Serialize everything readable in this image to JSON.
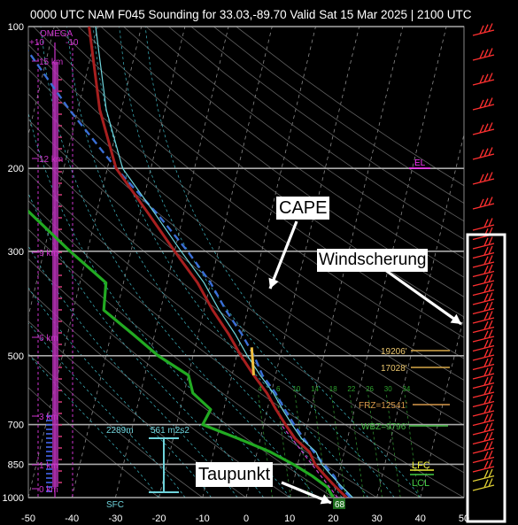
{
  "title": "0000 UTC NAM F045 Sounding for 33.03,-89.70 Valid  Sat 15 Mar 2025 | 2100 UTC",
  "annotations": {
    "cape": "CAPE",
    "taupunkt": "Taupunkt",
    "windscherung": "Windscherung"
  },
  "omega": {
    "label": "OMEGA",
    "left": "+10",
    "right": "-10"
  },
  "heights": [
    "15 km",
    "12 km",
    "9 km",
    "6 km",
    "3 km",
    "1 km",
    "0 km"
  ],
  "levels": {
    "el": "EL",
    "lfc": "LFC",
    "lcl": "LCL",
    "h1": "19206'",
    "h2": "17028'",
    "frz": "FRZ=12541'",
    "wb": "WBZ=9796'"
  },
  "hodo": {
    "height": "2289m",
    "helicity": "561 m2s2"
  },
  "sfc": {
    "label": "SFC",
    "value": "68"
  },
  "mixing_ratios": [
    "4",
    "6",
    "10",
    "14",
    "18",
    "22",
    "26",
    "30",
    "34"
  ],
  "colors": {
    "temperature": "#a81f1f",
    "dewpoint": "#22aa22",
    "parcel": "#3a6fd6",
    "virtual": "#6fd4dc",
    "isobar": "#aaaaaa",
    "omega": "#cc33cc",
    "wind": "#ff3030",
    "el": "#ff33ff",
    "lfc": "#eeee33",
    "lcl": "#44cc44",
    "frz": "#d8994a"
  },
  "chart_data": {
    "type": "skew-t",
    "pressure_ticks": [
      100,
      200,
      300,
      500,
      700,
      850,
      1000
    ],
    "temperature_ticks": [
      -50,
      -40,
      -30,
      -20,
      -10,
      0,
      10,
      20,
      30,
      40,
      50
    ],
    "xlim": [
      -50,
      50
    ],
    "ylim": [
      1000,
      100
    ],
    "temperature_profile": [
      {
        "p": 1000,
        "t": 23
      },
      {
        "p": 950,
        "t": 20
      },
      {
        "p": 900,
        "t": 17
      },
      {
        "p": 850,
        "t": 14
      },
      {
        "p": 800,
        "t": 12
      },
      {
        "p": 750,
        "t": 8
      },
      {
        "p": 700,
        "t": 5
      },
      {
        "p": 650,
        "t": 2
      },
      {
        "p": 600,
        "t": -1
      },
      {
        "p": 550,
        "t": -5
      },
      {
        "p": 500,
        "t": -9
      },
      {
        "p": 450,
        "t": -13
      },
      {
        "p": 400,
        "t": -18
      },
      {
        "p": 350,
        "t": -23
      },
      {
        "p": 300,
        "t": -30
      },
      {
        "p": 250,
        "t": -38
      },
      {
        "p": 200,
        "t": -48
      },
      {
        "p": 150,
        "t": -55
      },
      {
        "p": 100,
        "t": -62
      }
    ],
    "dewpoint_profile": [
      {
        "p": 1000,
        "t": 20
      },
      {
        "p": 950,
        "t": 18
      },
      {
        "p": 900,
        "t": 14
      },
      {
        "p": 850,
        "t": 9
      },
      {
        "p": 800,
        "t": 3
      },
      {
        "p": 750,
        "t": -5
      },
      {
        "p": 700,
        "t": -14
      },
      {
        "p": 650,
        "t": -13
      },
      {
        "p": 600,
        "t": -18
      },
      {
        "p": 550,
        "t": -20
      },
      {
        "p": 500,
        "t": -28
      },
      {
        "p": 450,
        "t": -35
      },
      {
        "p": 400,
        "t": -43
      },
      {
        "p": 350,
        "t": -44
      },
      {
        "p": 300,
        "t": -54
      },
      {
        "p": 250,
        "t": -65
      },
      {
        "p": 200,
        "t": -78
      },
      {
        "p": 150,
        "t": -85
      },
      {
        "p": 100,
        "t": -96
      }
    ],
    "parcel_profile": [
      {
        "p": 1000,
        "t": 24
      },
      {
        "p": 950,
        "t": 21
      },
      {
        "p": 900,
        "t": 19
      },
      {
        "p": 850,
        "t": 16
      },
      {
        "p": 800,
        "t": 13
      },
      {
        "p": 750,
        "t": 10
      },
      {
        "p": 700,
        "t": 7
      },
      {
        "p": 650,
        "t": 4
      },
      {
        "p": 600,
        "t": 1
      },
      {
        "p": 550,
        "t": -3
      },
      {
        "p": 500,
        "t": -6
      },
      {
        "p": 450,
        "t": -10
      },
      {
        "p": 400,
        "t": -15
      },
      {
        "p": 350,
        "t": -20
      },
      {
        "p": 300,
        "t": -27
      },
      {
        "p": 250,
        "t": -36
      },
      {
        "p": 200,
        "t": -48
      },
      {
        "p": 150,
        "t": -62
      },
      {
        "p": 100,
        "t": -80
      }
    ]
  }
}
